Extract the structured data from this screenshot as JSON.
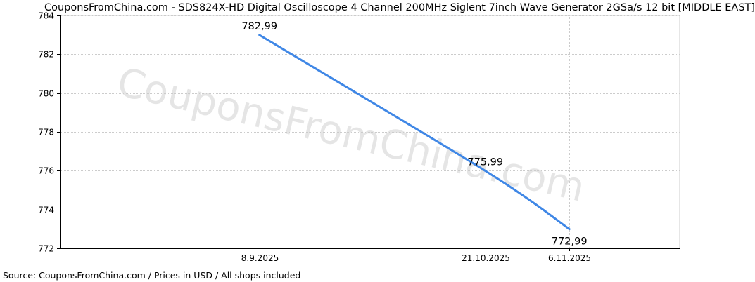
{
  "chart_title": "CouponsFromChina.com - SDS824X-HD Digital Oscilloscope 4 Channel 200MHz Siglent 7inch Wave Generator 2GSa/s 12 bit [MIDDLE EAST]",
  "watermark_text": "CouponsFromChina.com",
  "source_note": "Source: CouponsFromChina.com / Prices in USD / All shops included",
  "colors": {
    "line": "#3f87e6",
    "grid": "#cccccc",
    "axis": "#000000",
    "background": "#ffffff"
  },
  "chart_data": {
    "type": "line",
    "title": "CouponsFromChina.com - SDS824X-HD Digital Oscilloscope 4 Channel 200MHz Siglent 7inch Wave Generator 2GSa/s 12 bit [MIDDLE EAST]",
    "xlabel": "",
    "ylabel": "",
    "x_ticks": [
      "8.9.2025",
      "21.10.2025",
      "6.11.2025"
    ],
    "x_range": [
      "2025-08-01",
      "2025-11-27"
    ],
    "ylim": [
      772,
      784
    ],
    "y_ticks": [
      772,
      774,
      776,
      778,
      780,
      782,
      784
    ],
    "grid": true,
    "series": [
      {
        "points": [
          {
            "x": "2025-09-08",
            "y": 782.99,
            "label": "782,99"
          },
          {
            "x": "2025-10-21",
            "y": 775.99,
            "label": "775,99"
          },
          {
            "x": "2025-11-06",
            "y": 772.99,
            "label": "772,99"
          }
        ]
      }
    ]
  }
}
